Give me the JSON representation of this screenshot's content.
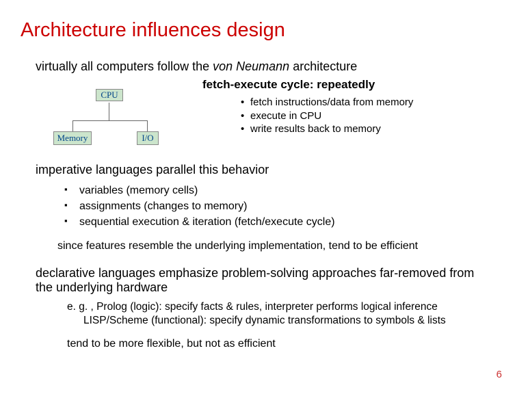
{
  "title": "Architecture influences design",
  "intro_prefix": "virtually all computers follow the ",
  "intro_italic": "von Neumann",
  "intro_suffix": " architecture",
  "diagram": {
    "cpu": "CPU",
    "memory": "Memory",
    "io": "I/O",
    "box_bg": "#cce5cc",
    "box_border": "#888888",
    "text_color": "#004488"
  },
  "fetch_title": "fetch-execute cycle:  repeatedly",
  "fetch_items": [
    "fetch instructions/data from memory",
    "execute in CPU",
    "write results back to memory"
  ],
  "section2": "imperative languages parallel this behavior",
  "imperative_items": [
    "variables (memory cells)",
    "assignments (changes to memory)",
    "sequential execution & iteration (fetch/execute cycle)"
  ],
  "note1": "since features resemble the underlying implementation, tend to be efficient",
  "section3": "declarative languages emphasize problem-solving approaches far-removed from the underlying hardware",
  "eg_line1": "e. g. , Prolog (logic): specify facts & rules, interpreter performs logical inference",
  "eg_line2": "LISP/Scheme (functional): specify dynamic transformations to symbols & lists",
  "note2": "tend to be more flexible, but not as efficient",
  "page_number": "6",
  "colors": {
    "title": "#cc0000",
    "pagenum": "#cc3333",
    "text": "#000000",
    "background": "#ffffff"
  }
}
